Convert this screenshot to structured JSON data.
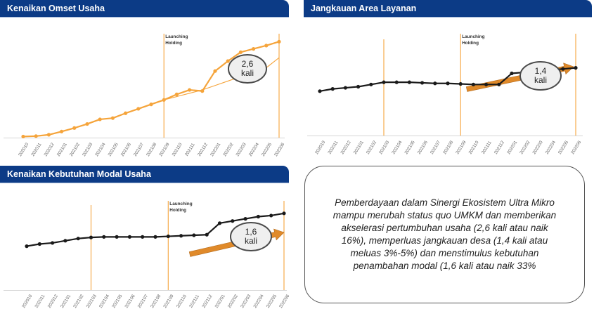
{
  "panels": {
    "omset": {
      "title": "Kenaikan Omset Usaha"
    },
    "area": {
      "title": "Jangkauan Area Layanan"
    },
    "modal": {
      "title": "Kenaikan Kebutuhan Modal Usaha"
    }
  },
  "summary": {
    "text": "Pemberdayaan dalam Sinergi Ekosistem Ultra Mikro mampu merubah status quo UMKM dan memberikan akselerasi pertumbuhan usaha (2,6 kali atau naik 16%), memperluas jangkauan desa (1,4 kali atau meluas 3%-5%) dan menstimulus kebutuhan penambahan modal (1,6 kali atau naik 33%"
  },
  "colors": {
    "header": "#0c3b86",
    "omset_line": "#f5a43b",
    "area_line": "#1a1a1a",
    "marker_line": "#f5a43b",
    "arrow": "#e08a2a",
    "callout_fill": "#efefef"
  },
  "chart_data": [
    {
      "type": "line",
      "panel": "omset",
      "categories": [
        "202010",
        "202011",
        "202012",
        "202101",
        "202102",
        "202103",
        "202104",
        "202105",
        "202106",
        "202107",
        "202108",
        "202109",
        "202110",
        "202111",
        "202112",
        "202201",
        "202202",
        "202203",
        "202204",
        "202205",
        "202206"
      ],
      "series": [
        {
          "values": [
            1.0,
            1.4,
            2.6,
            5.5,
            8.7,
            12.3,
            16.5,
            17.6,
            22,
            26,
            30,
            34,
            39,
            43,
            42,
            60,
            69,
            77,
            80,
            83,
            86.5
          ],
          "marker": "circle"
        },
        {
          "values": [
            1.0,
            1.4,
            2.6,
            5.5,
            8.7,
            12.3,
            16.5,
            17.6,
            22,
            26,
            30,
            34,
            37,
            40,
            43,
            47,
            51,
            55,
            59,
            63,
            72
          ],
          "marker": "none"
        }
      ],
      "ylim": [
        0,
        100
      ],
      "annotations": [
        {
          "text": "Launching Holding",
          "at": "202109"
        },
        {
          "text": "2,6 kali"
        }
      ],
      "grid": false
    },
    {
      "type": "line",
      "panel": "area",
      "categories": [
        "202010",
        "202011",
        "202012",
        "202101",
        "202102",
        "202103",
        "202104",
        "202105",
        "202106",
        "202107",
        "202108",
        "202109",
        "202110",
        "202111",
        "202112",
        "202201",
        "202202",
        "202203",
        "202204",
        "202205",
        "202206"
      ],
      "series": [
        {
          "values": [
            40,
            42,
            43,
            44,
            46,
            48,
            48,
            48,
            47.5,
            47,
            47,
            46.5,
            46,
            46,
            46,
            56,
            57,
            58,
            59,
            60,
            61
          ],
          "marker": "circle"
        }
      ],
      "ylim": [
        0,
        100
      ],
      "annotations": [
        {
          "text": "Launching Holding",
          "at": "202109"
        },
        {
          "text": "1,4 kali"
        }
      ],
      "vlines": [
        "202103",
        "202109",
        "202206"
      ],
      "grid": false
    },
    {
      "type": "line",
      "panel": "modal",
      "categories": [
        "202010",
        "202011",
        "202012",
        "202101",
        "202102",
        "202103",
        "202104",
        "202105",
        "202106",
        "202107",
        "202108",
        "202109",
        "202110",
        "202111",
        "202112",
        "202201",
        "202202",
        "202203",
        "202204",
        "202205",
        "202206"
      ],
      "series": [
        {
          "values": [
            40,
            42,
            43,
            45,
            47,
            48,
            48.5,
            48.5,
            48.5,
            48.5,
            48.5,
            49,
            49.5,
            50,
            50.5,
            61,
            63,
            65,
            67,
            68,
            70
          ],
          "marker": "circle"
        }
      ],
      "ylim": [
        0,
        100
      ],
      "annotations": [
        {
          "text": "Launching Holding",
          "at": "202109"
        },
        {
          "text": "1,6 kali"
        }
      ],
      "vlines": [
        "202103",
        "202109",
        "202206"
      ],
      "grid": false
    }
  ]
}
